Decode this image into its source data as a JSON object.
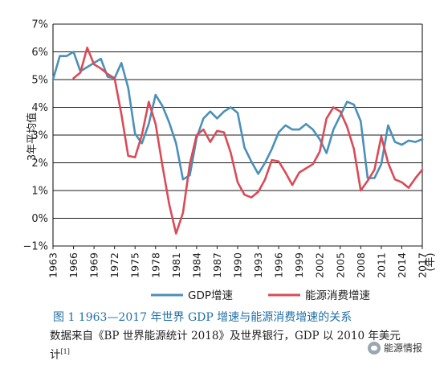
{
  "chart_data": {
    "type": "line",
    "ylabel": "3年平均值",
    "xlabel_unit": "(年)",
    "ylim": [
      -1,
      7
    ],
    "yticks": [
      "7%",
      "6%",
      "5%",
      "4%",
      "3%",
      "2%",
      "1%",
      "0%",
      "−1%"
    ],
    "ytick_values": [
      7,
      6,
      5,
      4,
      3,
      2,
      1,
      0,
      -1
    ],
    "xlim": [
      1963,
      2017
    ],
    "xticks": [
      "1963",
      "1966",
      "1969",
      "1972",
      "1975",
      "1978",
      "1981",
      "1984",
      "1987",
      "1990",
      "1993",
      "1996",
      "1999",
      "2002",
      "2005",
      "2008",
      "2011",
      "2014",
      "2017"
    ],
    "xtick_values": [
      1963,
      1966,
      1969,
      1972,
      1975,
      1978,
      1981,
      1984,
      1987,
      1990,
      1993,
      1996,
      1999,
      2002,
      2005,
      2008,
      2011,
      2014,
      2017
    ],
    "grid": "horizontal",
    "legend_position": "bottom",
    "series": [
      {
        "name": "GDP增速",
        "color": "#4a90b8",
        "x": [
          1963,
          1964,
          1965,
          1966,
          1967,
          1968,
          1969,
          1970,
          1971,
          1972,
          1973,
          1974,
          1975,
          1976,
          1977,
          1978,
          1979,
          1980,
          1981,
          1982,
          1983,
          1984,
          1985,
          1986,
          1987,
          1988,
          1989,
          1990,
          1991,
          1992,
          1993,
          1994,
          1995,
          1996,
          1997,
          1998,
          1999,
          2000,
          2001,
          2002,
          2003,
          2004,
          2005,
          2006,
          2007,
          2008,
          2009,
          2010,
          2011,
          2012,
          2013,
          2014,
          2015,
          2016,
          2017
        ],
        "y": [
          5.0,
          5.85,
          5.85,
          6.0,
          5.3,
          5.45,
          5.6,
          5.75,
          5.1,
          5.05,
          5.6,
          4.7,
          3.05,
          2.7,
          3.4,
          4.45,
          4.05,
          3.45,
          2.7,
          1.4,
          1.55,
          2.9,
          3.6,
          3.85,
          3.6,
          3.85,
          4.0,
          3.8,
          2.55,
          2.05,
          1.6,
          2.0,
          2.5,
          3.1,
          3.35,
          3.2,
          3.2,
          3.4,
          3.2,
          2.85,
          2.35,
          3.2,
          3.7,
          4.2,
          4.1,
          3.5,
          1.45,
          1.45,
          1.95,
          3.35,
          2.75,
          2.65,
          2.8,
          2.75,
          2.85
        ]
      },
      {
        "name": "能源消费增速",
        "color": "#d94b57",
        "x": [
          1966,
          1967,
          1968,
          1969,
          1970,
          1971,
          1972,
          1973,
          1974,
          1975,
          1976,
          1977,
          1978,
          1979,
          1980,
          1981,
          1982,
          1983,
          1984,
          1985,
          1986,
          1987,
          1988,
          1989,
          1990,
          1991,
          1992,
          1993,
          1994,
          1995,
          1996,
          1997,
          1998,
          1999,
          2000,
          2001,
          2002,
          2003,
          2004,
          2005,
          2006,
          2007,
          2008,
          2009,
          2010,
          2011,
          2012,
          2013,
          2014,
          2015,
          2016,
          2017
        ],
        "y": [
          5.05,
          5.25,
          6.15,
          5.55,
          5.4,
          5.2,
          5.05,
          3.75,
          2.25,
          2.2,
          3.0,
          4.2,
          3.4,
          1.9,
          0.5,
          -0.55,
          0.2,
          1.95,
          3.0,
          3.2,
          2.75,
          3.15,
          3.1,
          2.35,
          1.3,
          0.85,
          0.75,
          0.95,
          1.4,
          2.1,
          2.05,
          1.65,
          1.2,
          1.65,
          1.8,
          1.95,
          2.4,
          3.6,
          4.0,
          3.85,
          3.3,
          2.5,
          1.0,
          1.35,
          1.75,
          2.95,
          2.0,
          1.4,
          1.3,
          1.1,
          1.45,
          1.75
        ]
      }
    ]
  },
  "caption": {
    "title": "图 1    1963—2017 年世界 GDP 增速与能源消费增速的关系",
    "note": "数据来自《BP 世界能源统计 2018》及世界银行，GDP 以 2010 年美元计",
    "note_ref": "[1]"
  },
  "watermark": {
    "icon": "wechat-icon",
    "text": "能源情报"
  }
}
